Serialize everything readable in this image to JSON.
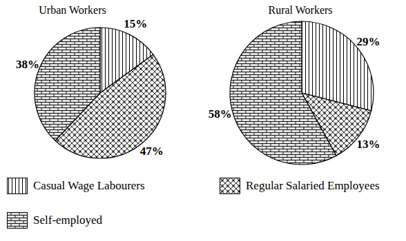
{
  "chart_data": [
    {
      "type": "pie",
      "title": "Urban Workers",
      "categories": [
        "Casual Wage Labourers",
        "Regular Salaried Employees",
        "Self-employed"
      ],
      "values": [
        15,
        47,
        38
      ],
      "value_labels": [
        "15%",
        "47%",
        "38%"
      ],
      "colors": [
        "#ffffff",
        "#f2f2f2",
        "#e6e6e6"
      ],
      "data_labels": true,
      "legend": "bottom"
    },
    {
      "type": "pie",
      "title": "Rural Workers",
      "categories": [
        "Casual Wage Labourers",
        "Regular Salaried Employees",
        "Self-employed"
      ],
      "values": [
        29,
        13,
        58
      ],
      "value_labels": [
        "29%",
        "13%",
        "58%"
      ],
      "colors": [
        "#ffffff",
        "#f2f2f2",
        "#e6e6e6"
      ],
      "data_labels": true,
      "legend": "bottom"
    }
  ]
}
